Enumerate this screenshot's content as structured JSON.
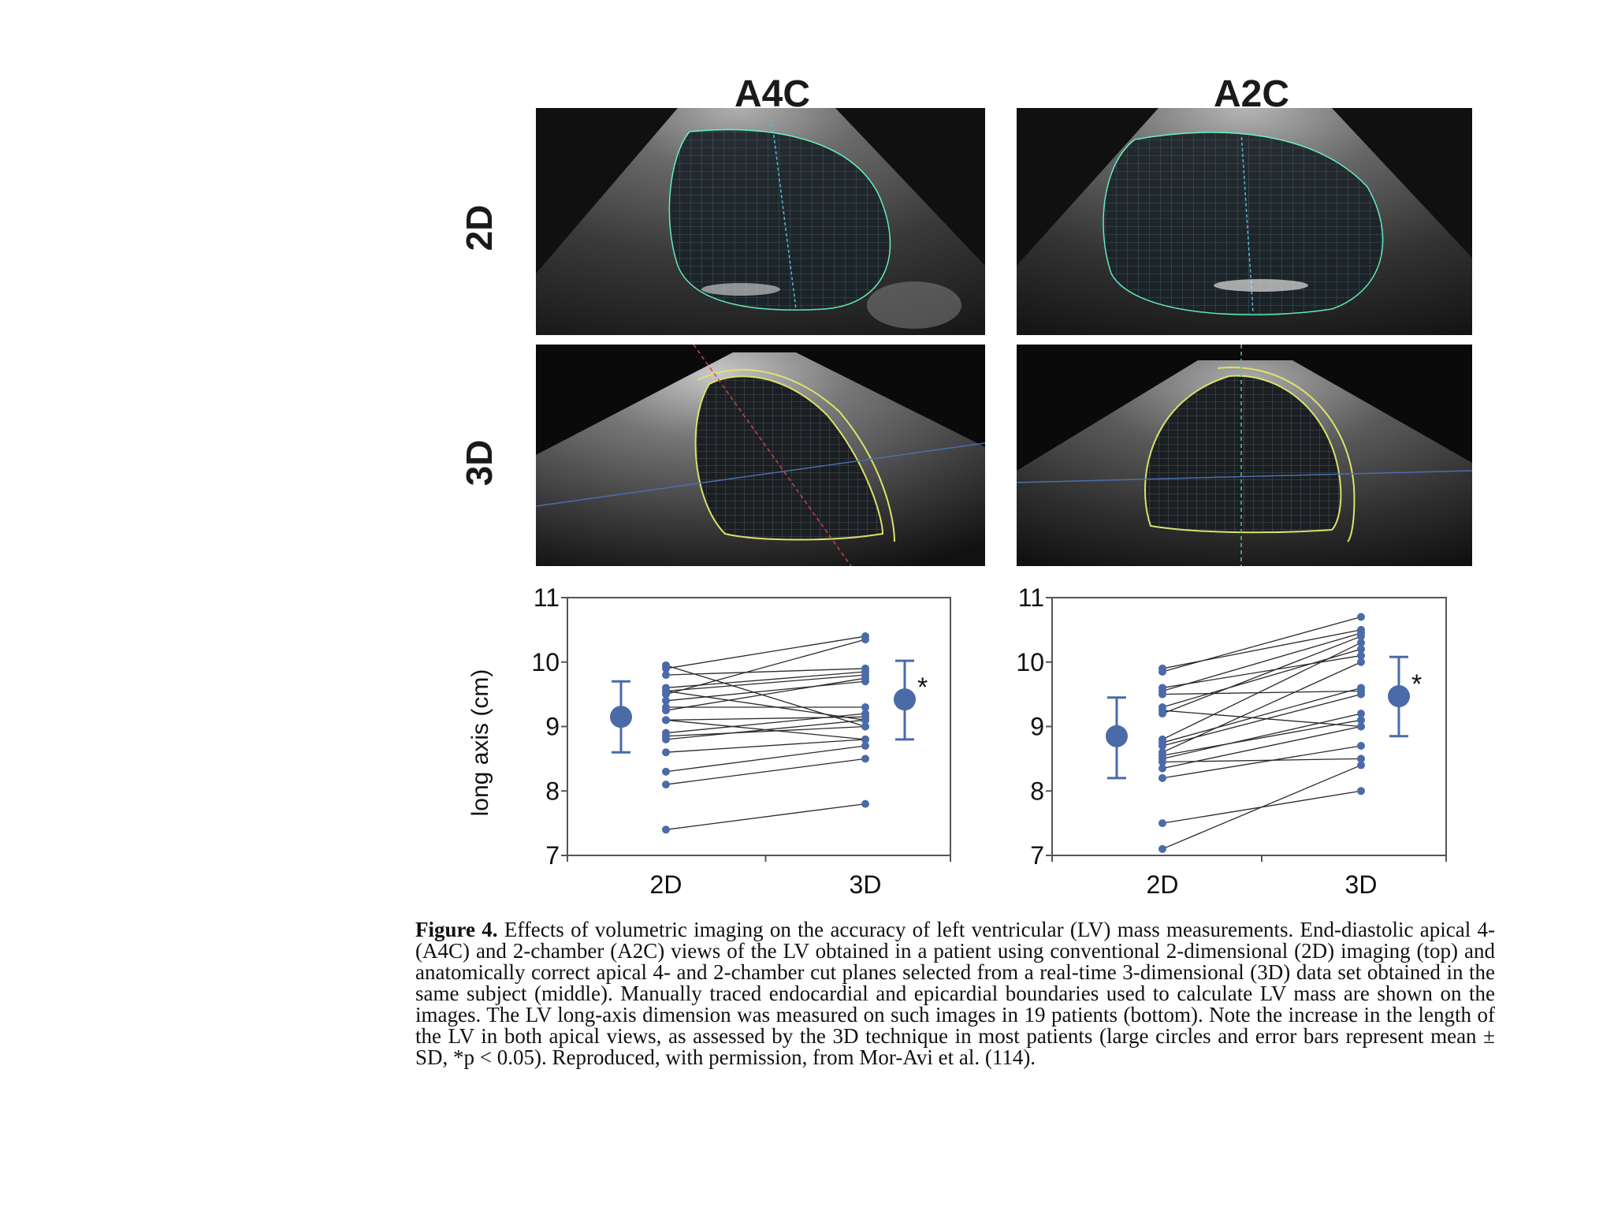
{
  "figure": {
    "columns": [
      "A4C",
      "A2C"
    ],
    "rows": [
      "2D",
      "3D"
    ],
    "caption_label": "Figure 4.",
    "caption_text": " Effects of volumetric imaging on the accuracy of left ventricular (LV) mass measurements. End-diastolic apical 4- (A4C) and 2-chamber (A2C) views of the LV obtained in a patient using conventional 2-dimensional (2D) imaging (top) and anatomically correct apical 4- and 2-chamber cut planes selected from a real-time 3-dimensional (3D) data set obtained in the same subject (middle). Manually traced endocardial and epicardial boundaries used to calculate LV mass are shown on the images. The LV long-axis dimension was measured on such images in 19 patients (bottom). Note the increase in the length of the LV in both apical views, as assessed by the 3D technique in most patients (large circles and error bars represent mean ± SD, *p < 0.05). Reproduced, with permission, from Mor-Avi et al. (114)."
  },
  "chart_data": [
    {
      "type": "scatter",
      "ylabel": "long axis (cm)",
      "categories": [
        "2D",
        "3D"
      ],
      "ylim": [
        7,
        11
      ],
      "yticks": [
        "7",
        "8",
        "9",
        "10",
        "11"
      ],
      "pairs": [
        [
          7.4,
          7.8
        ],
        [
          8.1,
          8.5
        ],
        [
          8.3,
          8.7
        ],
        [
          8.6,
          8.8
        ],
        [
          8.8,
          9.1
        ],
        [
          8.85,
          9.0
        ],
        [
          8.9,
          9.2
        ],
        [
          9.1,
          8.8
        ],
        [
          9.1,
          9.15
        ],
        [
          9.3,
          9.3
        ],
        [
          9.4,
          9.7
        ],
        [
          9.5,
          10.35
        ],
        [
          9.55,
          9.8
        ],
        [
          9.6,
          9.85
        ],
        [
          9.8,
          9.9
        ],
        [
          9.9,
          10.4
        ],
        [
          9.95,
          9.0
        ],
        [
          9.55,
          9.1
        ],
        [
          9.25,
          9.75
        ]
      ],
      "mean_2d": 9.15,
      "sd_2d": [
        8.6,
        9.7
      ],
      "mean_3d": 9.42,
      "sd_3d": [
        8.8,
        10.02
      ],
      "significance": "*"
    },
    {
      "type": "scatter",
      "ylabel": "",
      "categories": [
        "2D",
        "3D"
      ],
      "ylim": [
        7,
        11
      ],
      "yticks": [
        "7",
        "8",
        "9",
        "10",
        "11"
      ],
      "pairs": [
        [
          7.1,
          8.4
        ],
        [
          7.5,
          8.0
        ],
        [
          8.2,
          8.7
        ],
        [
          8.35,
          9.0
        ],
        [
          8.5,
          9.2
        ],
        [
          8.55,
          9.1
        ],
        [
          8.6,
          10.0
        ],
        [
          8.7,
          9.5
        ],
        [
          8.75,
          9.6
        ],
        [
          8.8,
          10.3
        ],
        [
          9.2,
          10.4
        ],
        [
          9.25,
          9.0
        ],
        [
          9.3,
          10.2
        ],
        [
          9.5,
          9.55
        ],
        [
          9.55,
          10.45
        ],
        [
          9.6,
          10.1
        ],
        [
          9.85,
          10.7
        ],
        [
          9.9,
          10.5
        ],
        [
          8.45,
          8.5
        ]
      ],
      "mean_2d": 8.85,
      "sd_2d": [
        8.2,
        9.45
      ],
      "mean_3d": 9.47,
      "sd_3d": [
        8.85,
        10.08
      ],
      "significance": "*"
    }
  ]
}
